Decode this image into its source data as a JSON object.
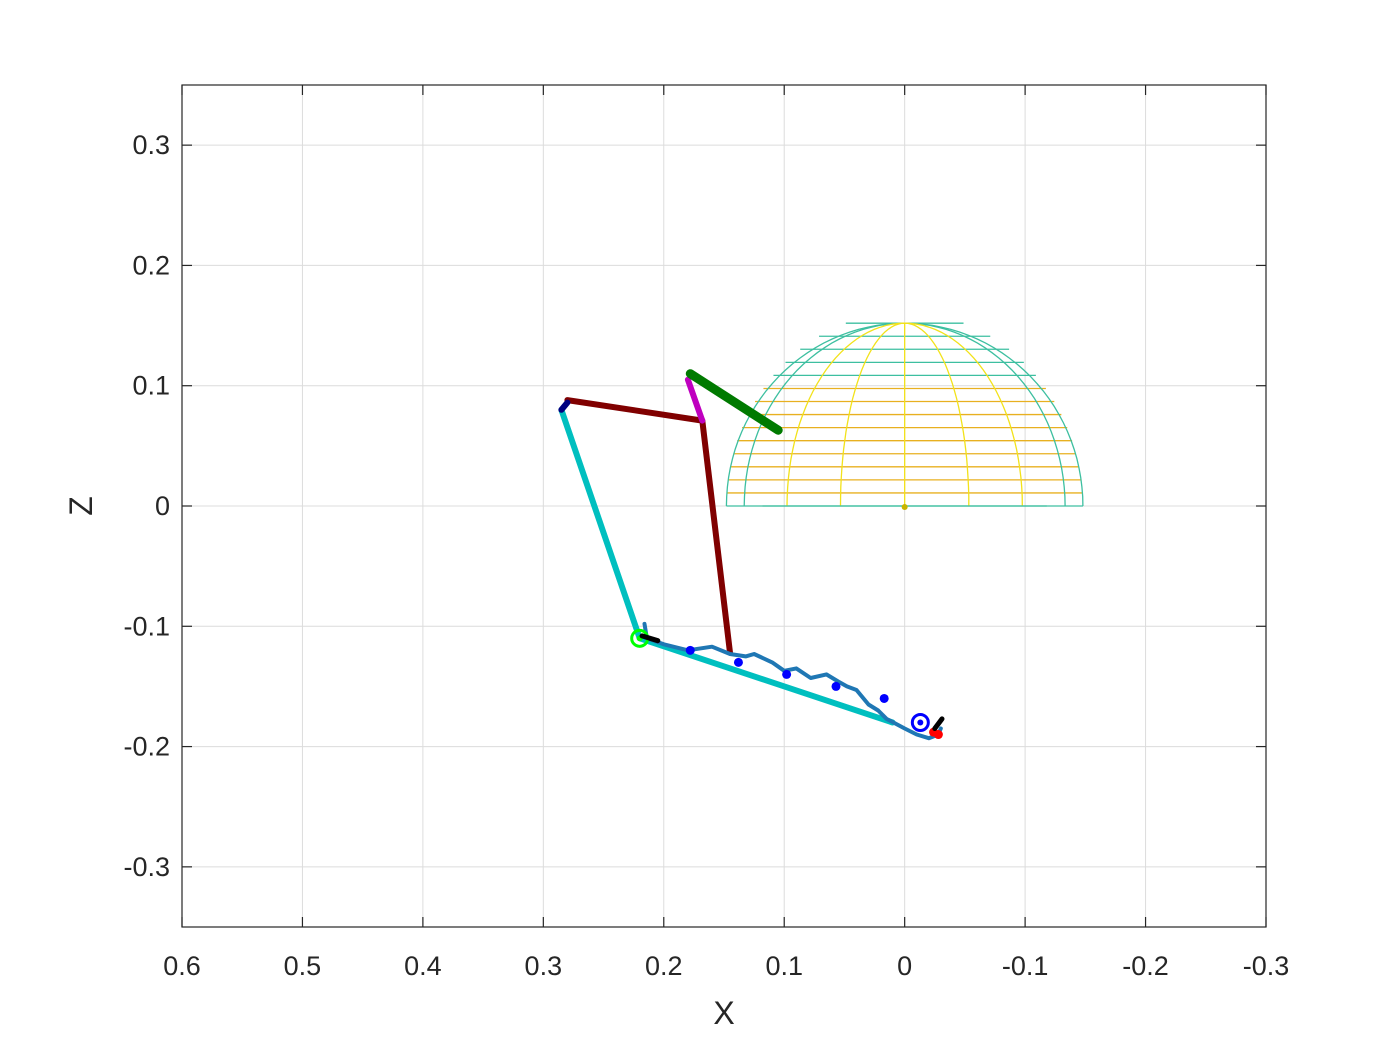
{
  "chart_data": {
    "type": "line",
    "xlabel": "X",
    "ylabel": "Z",
    "xlim": [
      0.6,
      -0.3
    ],
    "ylim": [
      -0.35,
      0.35
    ],
    "x_reversed": true,
    "grid": true,
    "x_ticks": [
      0.6,
      0.5,
      0.4,
      0.3,
      0.2,
      0.1,
      0,
      -0.1,
      -0.2,
      -0.3
    ],
    "x_tick_labels": [
      "0.6",
      "0.5",
      "0.4",
      "0.3",
      "0.2",
      "0.1",
      "0",
      "-0.1",
      "-0.2",
      "-0.3"
    ],
    "y_ticks": [
      0.3,
      0.2,
      0.1,
      0,
      -0.1,
      -0.2,
      -0.3
    ],
    "y_tick_labels": [
      "0.3",
      "0.2",
      "0.1",
      "0",
      "-0.1",
      "-0.2",
      "-0.3"
    ],
    "colors": {
      "ellipsoid_edge": "#3dbfa0",
      "ellipsoid_core": "#f2e21a",
      "ellipsoid_mid": "#e8b020",
      "dark_red": "#800000",
      "cyan": "#00bfbf",
      "blue_path": "#1f77b4",
      "green": "#007a00",
      "magenta": "#bf00bf",
      "black": "#000000",
      "blue_marker": "#0000ff",
      "red_marker": "#ff0000",
      "lime_marker": "#00ff00",
      "navy": "#000080"
    },
    "ellipsoid": {
      "center": [
        0.0,
        0.0
      ],
      "x_radius": 0.148,
      "z_height": 0.152,
      "outline_half_width_at_base": 0.118
    },
    "series": [
      {
        "kind": "segment",
        "color": "dark_red",
        "points": [
          [
            0.28,
            0.088
          ],
          [
            0.168,
            0.071
          ],
          [
            0.145,
            -0.122
          ]
        ]
      },
      {
        "kind": "segment",
        "color": "cyan",
        "points": [
          [
            0.285,
            0.08
          ],
          [
            0.22,
            -0.11
          ],
          [
            0.01,
            -0.18
          ]
        ]
      },
      {
        "kind": "segment",
        "color": "magenta",
        "points": [
          [
            0.18,
            0.105
          ],
          [
            0.168,
            0.071
          ]
        ]
      },
      {
        "kind": "segment",
        "color": "green",
        "points": [
          [
            0.178,
            0.11
          ],
          [
            0.105,
            0.063
          ]
        ]
      },
      {
        "kind": "path",
        "color": "blue_path",
        "points": [
          [
            0.216,
            -0.098
          ],
          [
            0.214,
            -0.11
          ],
          [
            0.2,
            -0.115
          ],
          [
            0.18,
            -0.12
          ],
          [
            0.16,
            -0.117
          ],
          [
            0.145,
            -0.123
          ],
          [
            0.132,
            -0.125
          ],
          [
            0.125,
            -0.123
          ],
          [
            0.11,
            -0.13
          ],
          [
            0.1,
            -0.137
          ],
          [
            0.09,
            -0.135
          ],
          [
            0.078,
            -0.143
          ],
          [
            0.065,
            -0.14
          ],
          [
            0.055,
            -0.146
          ],
          [
            0.048,
            -0.15
          ],
          [
            0.04,
            -0.153
          ],
          [
            0.03,
            -0.165
          ],
          [
            0.022,
            -0.17
          ],
          [
            0.015,
            -0.177
          ],
          [
            0.0,
            -0.185
          ],
          [
            -0.01,
            -0.19
          ],
          [
            -0.02,
            -0.193
          ],
          [
            -0.028,
            -0.19
          ],
          [
            -0.03,
            -0.185
          ]
        ]
      },
      {
        "kind": "marker",
        "color": "blue_marker",
        "points": [
          [
            0.178,
            -0.12
          ],
          [
            0.138,
            -0.13
          ],
          [
            0.098,
            -0.14
          ],
          [
            0.057,
            -0.15
          ],
          [
            0.017,
            -0.16
          ]
        ]
      },
      {
        "kind": "ring",
        "color": "blue_marker",
        "points": [
          [
            -0.013,
            -0.18
          ]
        ]
      },
      {
        "kind": "marker",
        "color": "red_marker",
        "points": [
          [
            -0.024,
            -0.188
          ],
          [
            -0.028,
            -0.19
          ]
        ]
      },
      {
        "kind": "ring",
        "color": "lime_marker",
        "points": [
          [
            0.22,
            -0.11
          ]
        ]
      },
      {
        "kind": "segment",
        "color": "black",
        "points": [
          [
            0.218,
            -0.108
          ],
          [
            0.205,
            -0.112
          ]
        ]
      },
      {
        "kind": "segment",
        "color": "black",
        "points": [
          [
            -0.025,
            -0.185
          ],
          [
            -0.031,
            -0.177
          ]
        ]
      },
      {
        "kind": "segment",
        "color": "navy",
        "points": [
          [
            0.285,
            0.08
          ],
          [
            0.28,
            0.086
          ]
        ]
      }
    ]
  }
}
